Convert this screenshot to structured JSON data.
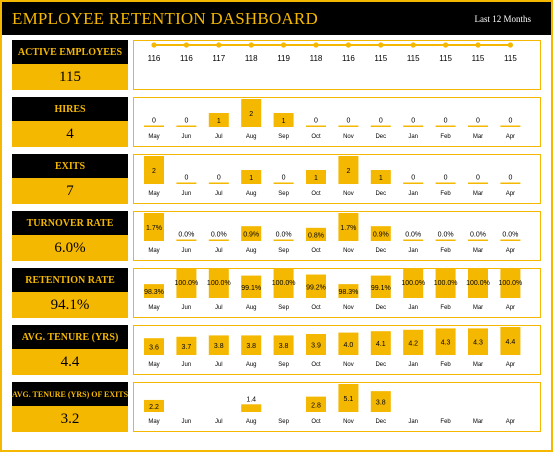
{
  "header": {
    "title": "EMPLOYEE RETENTION DASHBOARD",
    "period": "Last 12 Months"
  },
  "colors": {
    "accent": "#f5b800",
    "dark": "#000000"
  },
  "months": [
    "May",
    "Jun",
    "Jul",
    "Aug",
    "Sep",
    "Oct",
    "Nov",
    "Dec",
    "Jan",
    "Feb",
    "Mar",
    "Apr"
  ],
  "metrics": [
    {
      "label": "ACTIVE EMPLOYEES",
      "value": "115"
    },
    {
      "label": "HIRES",
      "value": "4"
    },
    {
      "label": "EXITS",
      "value": "7"
    },
    {
      "label": "TURNOVER RATE",
      "value": "6.0%"
    },
    {
      "label": "RETENTION RATE",
      "value": "94.1%"
    },
    {
      "label": "AVG. TENURE (YRS)",
      "value": "4.4"
    },
    {
      "label": "AVG. TENURE (YRS) OF EXITS",
      "value": "3.2"
    }
  ],
  "chart_data": [
    {
      "type": "line",
      "series": [
        {
          "values": [
            116,
            116,
            117,
            118,
            119,
            118,
            116,
            115,
            115,
            115,
            115,
            115
          ],
          "labels": [
            "116",
            "116",
            "117",
            "118",
            "119",
            "118",
            "116",
            "115",
            "115",
            "115",
            "115",
            "115"
          ]
        }
      ]
    },
    {
      "type": "bar",
      "series": [
        {
          "values": [
            0,
            0,
            1,
            2,
            1,
            0,
            0,
            0,
            0,
            0,
            0,
            0
          ],
          "labels": [
            "0",
            "0",
            "1",
            "2",
            "1",
            "0",
            "0",
            "0",
            "0",
            "0",
            "0",
            "0"
          ]
        }
      ]
    },
    {
      "type": "bar",
      "series": [
        {
          "values": [
            2,
            0,
            0,
            1,
            0,
            1,
            2,
            1,
            0,
            0,
            0,
            0
          ],
          "labels": [
            "2",
            "0",
            "0",
            "1",
            "0",
            "1",
            "2",
            "1",
            "0",
            "0",
            "0",
            "0"
          ]
        }
      ]
    },
    {
      "type": "bar",
      "series": [
        {
          "values": [
            1.7,
            0,
            0,
            0.9,
            0,
            0.8,
            1.7,
            0.9,
            0,
            0,
            0,
            0
          ],
          "labels": [
            "1.7%",
            "0.0%",
            "0.0%",
            "0.9%",
            "0.0%",
            "0.8%",
            "1.7%",
            "0.9%",
            "0.0%",
            "0.0%",
            "0.0%",
            "0.0%"
          ]
        }
      ]
    },
    {
      "type": "bar",
      "series": [
        {
          "values": [
            98.3,
            100,
            100,
            99.1,
            100,
            99.2,
            98.3,
            99.1,
            100,
            100,
            100,
            100
          ],
          "labels": [
            "98.3%",
            "100.0%",
            "100.0%",
            "99.1%",
            "100.0%",
            "99.2%",
            "98.3%",
            "99.1%",
            "100.0%",
            "100.0%",
            "100.0%",
            "100.0%"
          ]
        }
      ]
    },
    {
      "type": "bar",
      "series": [
        {
          "values": [
            3.6,
            3.7,
            3.8,
            3.8,
            3.8,
            3.9,
            4.0,
            4.1,
            4.2,
            4.3,
            4.3,
            4.4
          ],
          "labels": [
            "3.6",
            "3.7",
            "3.8",
            "3.8",
            "3.8",
            "3.9",
            "4.0",
            "4.1",
            "4.2",
            "4.3",
            "4.3",
            "4.4"
          ]
        }
      ]
    },
    {
      "type": "bar",
      "series": [
        {
          "values": [
            2.2,
            null,
            null,
            1.4,
            null,
            2.8,
            5.1,
            3.8,
            null,
            null,
            null,
            null
          ],
          "labels": [
            "2.2",
            "",
            "",
            "1.4",
            "",
            "2.8",
            "5.1",
            "3.8",
            "",
            "",
            "",
            ""
          ]
        }
      ]
    }
  ]
}
